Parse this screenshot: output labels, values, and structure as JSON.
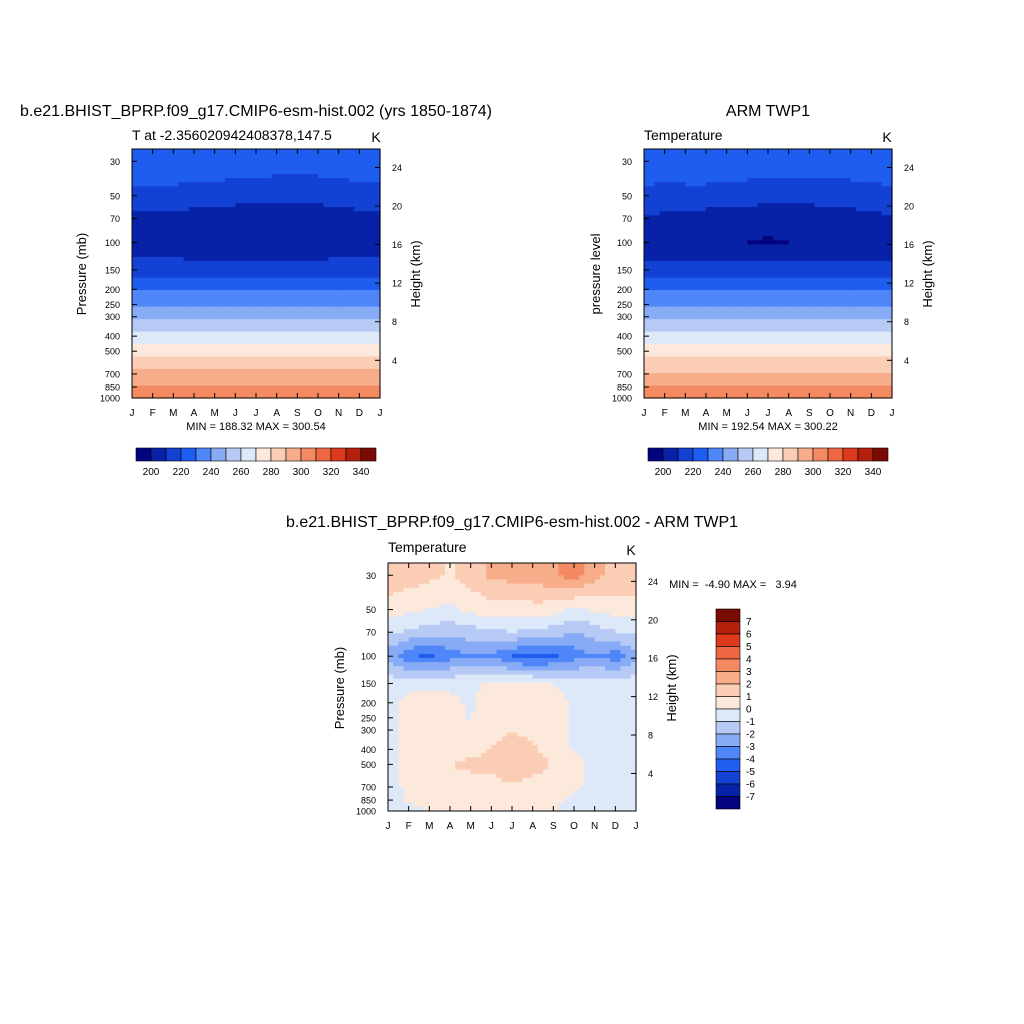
{
  "months": [
    "J",
    "F",
    "M",
    "A",
    "M",
    "J",
    "J",
    "A",
    "S",
    "O",
    "N",
    "D",
    "J"
  ],
  "pressure_levels": [
    30,
    50,
    70,
    100,
    150,
    200,
    250,
    300,
    400,
    500,
    700,
    850,
    1000
  ],
  "height_ticks_km": [
    24,
    20,
    16,
    12,
    8,
    4
  ],
  "panel_model": {
    "title": "b.e21.BHIST_BPRP.f09_g17.CMIP6-esm-hist.002 (yrs 1850-1874)",
    "subtitle_left": "T at -2.356020942408378,147.5",
    "units": "K",
    "ylabel": "Pressure (mb)",
    "y2label": "Height (km)",
    "minmax": "MIN = 188.32 MAX = 300.54"
  },
  "panel_obs": {
    "title": "ARM TWP1",
    "subtitle_left": "Temperature",
    "units": "K",
    "ylabel": "pressure level",
    "y2label": "Height (km)",
    "minmax": "MIN = 192.54 MAX = 300.22"
  },
  "panel_diff": {
    "title": "b.e21.BHIST_BPRP.f09_g17.CMIP6-esm-hist.002 - ARM TWP1",
    "subtitle_left": "Temperature",
    "units": "K",
    "ylabel": "Pressure (mb)",
    "y2label": "Height (km)",
    "minmax": "MIN =  -4.90 MAX =   3.94"
  },
  "colorbar_abs": {
    "labels": [
      "200",
      "220",
      "240",
      "260",
      "280",
      "300",
      "320",
      "340"
    ],
    "colors": [
      "#03037f",
      "#0722a6",
      "#1241d4",
      "#1e5df0",
      "#4f86f8",
      "#88abf6",
      "#b7caf5",
      "#dde8f9",
      "#fde9dc",
      "#fbcdb5",
      "#f8ad8a",
      "#f48a62",
      "#ee6644",
      "#dd3a1d",
      "#b3200c",
      "#7a0d03"
    ]
  },
  "colorbar_diff": {
    "labels": [
      "7",
      "6",
      "5",
      "4",
      "3",
      "2",
      "1",
      "0",
      "-1",
      "-2",
      "-3",
      "-4",
      "-5",
      "-6",
      "-7"
    ],
    "colors": [
      "#7a0d03",
      "#b3200c",
      "#dd3a1d",
      "#ee6644",
      "#f48a62",
      "#f8ad8a",
      "#fbcdb5",
      "#fde9dc",
      "#dde8f9",
      "#b7caf5",
      "#88abf6",
      "#4f86f8",
      "#1e5df0",
      "#1241d4",
      "#0722a6",
      "#03037f"
    ]
  },
  "chart_data": [
    {
      "type": "heatmap",
      "title": "b.e21.BHIST_BPRP.f09_g17.CMIP6-esm-hist.002 (yrs 1850-1874)",
      "variable": "T",
      "units": "K",
      "x": [
        "J",
        "F",
        "M",
        "A",
        "M",
        "J",
        "J",
        "A",
        "S",
        "O",
        "N",
        "D",
        "J"
      ],
      "y_pressure_mb": [
        30,
        50,
        70,
        100,
        150,
        200,
        250,
        300,
        400,
        500,
        700,
        850,
        1000
      ],
      "values": [
        [
          218,
          219,
          219,
          218,
          217,
          216,
          216,
          215,
          215,
          215,
          216,
          217,
          218
        ],
        [
          206,
          206,
          206,
          205,
          205,
          204,
          203,
          203,
          203,
          203,
          204,
          205,
          206
        ],
        [
          198,
          198,
          197,
          196,
          195,
          194,
          193,
          193,
          194,
          195,
          196,
          197,
          198
        ],
        [
          194,
          194,
          193,
          192,
          191,
          190,
          190,
          190,
          191,
          192,
          193,
          193,
          194
        ],
        [
          205,
          205,
          205,
          205,
          205,
          205,
          205,
          205,
          205,
          205,
          205,
          205,
          205
        ],
        [
          219,
          219,
          219,
          219,
          219,
          219,
          219,
          219,
          219,
          219,
          219,
          219,
          219
        ],
        [
          229,
          229,
          229,
          229,
          229,
          229,
          229,
          229,
          229,
          229,
          229,
          229,
          229
        ],
        [
          238,
          238,
          238,
          238,
          238,
          238,
          238,
          238,
          238,
          238,
          238,
          238,
          238
        ],
        [
          253,
          253,
          253,
          253,
          253,
          253,
          253,
          253,
          253,
          253,
          253,
          253,
          253
        ],
        [
          267,
          267,
          267,
          267,
          267,
          267,
          267,
          267,
          267,
          267,
          267,
          267,
          267
        ],
        [
          283,
          283,
          283,
          283,
          283,
          283,
          283,
          283,
          283,
          283,
          283,
          283,
          283
        ],
        [
          292,
          292,
          292,
          292,
          292,
          292,
          292,
          292,
          292,
          292,
          292,
          292,
          292
        ],
        [
          300,
          300,
          300,
          300,
          300,
          300,
          300,
          300,
          300,
          300,
          300,
          300,
          300
        ]
      ],
      "min": 188.32,
      "max": 300.54,
      "ylabel": "Pressure (mb)",
      "y2label": "Height (km)"
    },
    {
      "type": "heatmap",
      "title": "ARM TWP1",
      "variable": "Temperature",
      "units": "K",
      "x": [
        "J",
        "F",
        "M",
        "A",
        "M",
        "J",
        "J",
        "A",
        "S",
        "O",
        "N",
        "D",
        "J"
      ],
      "y_pressure_mb": [
        30,
        50,
        70,
        100,
        150,
        200,
        250,
        300,
        400,
        500,
        700,
        850,
        1000
      ],
      "values": [
        [
          217,
          217,
          218,
          218,
          217,
          216,
          216,
          216,
          216,
          215,
          216,
          217,
          217
        ],
        [
          207,
          206,
          206,
          206,
          205,
          205,
          204,
          204,
          204,
          204,
          205,
          206,
          207
        ],
        [
          199,
          198,
          197,
          196,
          195,
          194,
          193,
          193,
          194,
          195,
          196,
          197,
          199
        ],
        [
          194,
          194,
          193,
          192,
          191,
          190,
          189,
          190,
          191,
          192,
          193,
          193,
          194
        ],
        [
          204,
          204,
          204,
          204,
          204,
          204,
          204,
          204,
          204,
          204,
          204,
          204,
          204
        ],
        [
          219,
          219,
          219,
          219,
          219,
          219,
          219,
          219,
          219,
          219,
          219,
          219,
          219
        ],
        [
          229,
          229,
          229,
          229,
          229,
          229,
          229,
          229,
          229,
          229,
          229,
          229,
          229
        ],
        [
          238,
          238,
          238,
          238,
          238,
          238,
          238,
          238,
          238,
          238,
          238,
          238,
          238
        ],
        [
          253,
          253,
          253,
          253,
          253,
          253,
          253,
          253,
          253,
          253,
          253,
          253,
          253
        ],
        [
          266,
          266,
          266,
          266,
          266,
          266,
          266,
          266,
          266,
          266,
          266,
          266,
          266
        ],
        [
          282,
          282,
          282,
          282,
          282,
          282,
          282,
          282,
          282,
          282,
          282,
          282,
          282
        ],
        [
          291,
          291,
          291,
          291,
          291,
          291,
          291,
          291,
          291,
          291,
          291,
          291,
          291
        ],
        [
          299,
          299,
          299,
          299,
          299,
          299,
          299,
          299,
          299,
          299,
          299,
          299,
          299
        ]
      ],
      "min": 192.54,
      "max": 300.22,
      "ylabel": "pressure level",
      "y2label": "Height (km)"
    },
    {
      "type": "heatmap",
      "title": "b.e21.BHIST_BPRP.f09_g17.CMIP6-esm-hist.002 - ARM TWP1",
      "variable": "Temperature",
      "units": "K",
      "x": [
        "J",
        "F",
        "M",
        "A",
        "M",
        "J",
        "J",
        "A",
        "S",
        "O",
        "N",
        "D",
        "J"
      ],
      "y_pressure_mb": [
        30,
        50,
        70,
        100,
        150,
        200,
        250,
        300,
        400,
        500,
        700,
        850,
        1000
      ],
      "values": [
        [
          1.8,
          1.5,
          1.2,
          0.9,
          1.4,
          2.2,
          2.4,
          2.5,
          2.8,
          3.5,
          2.3,
          1.8,
          1.8
        ],
        [
          0.5,
          0.2,
          0.0,
          -0.2,
          0.3,
          0.6,
          0.4,
          0.6,
          0.5,
          -0.3,
          0.2,
          0.4,
          0.5
        ],
        [
          -0.8,
          -1.2,
          -1.5,
          -1.8,
          -1.5,
          -1.2,
          -1.0,
          -1.2,
          -1.5,
          -2.0,
          -1.6,
          -1.0,
          -0.8
        ],
        [
          -2.5,
          -3.8,
          -4.2,
          -3.5,
          -3.0,
          -3.2,
          -4.0,
          -4.6,
          -4.2,
          -3.5,
          -3.0,
          -3.6,
          -2.5
        ],
        [
          -0.4,
          -0.3,
          -0.2,
          -0.2,
          -0.2,
          0.1,
          0.2,
          0.2,
          0.0,
          -0.3,
          -0.4,
          -0.4,
          -0.4
        ],
        [
          -0.3,
          0.3,
          0.4,
          0.2,
          -0.1,
          0.6,
          0.8,
          0.7,
          0.4,
          -0.2,
          -0.4,
          -0.5,
          -0.3
        ],
        [
          -0.4,
          0.4,
          0.5,
          0.3,
          -0.1,
          0.8,
          0.9,
          0.8,
          0.4,
          -0.2,
          -0.5,
          -0.5,
          -0.4
        ],
        [
          -0.3,
          0.3,
          0.4,
          0.3,
          0.1,
          0.8,
          1.0,
          0.8,
          0.4,
          -0.2,
          -0.4,
          -0.4,
          -0.3
        ],
        [
          -0.3,
          0.2,
          0.4,
          0.5,
          0.7,
          1.0,
          1.3,
          1.1,
          0.6,
          -0.1,
          -0.3,
          -0.3,
          -0.3
        ],
        [
          -0.2,
          0.2,
          0.8,
          1.0,
          1.2,
          1.4,
          2.1,
          1.5,
          0.9,
          0.3,
          -0.2,
          -0.2,
          -0.2
        ],
        [
          -0.3,
          0.2,
          0.5,
          0.6,
          0.6,
          0.5,
          0.7,
          0.5,
          0.4,
          0.2,
          -0.3,
          -0.4,
          -0.3
        ],
        [
          -0.5,
          0.1,
          0.2,
          0.3,
          0.3,
          0.2,
          0.3,
          0.2,
          0.2,
          -0.2,
          -0.5,
          -0.5,
          -0.5
        ],
        [
          -0.6,
          -0.2,
          0.0,
          0.0,
          0.2,
          0.3,
          0.4,
          0.3,
          0.1,
          -0.4,
          -0.6,
          -0.6,
          -0.6
        ]
      ],
      "min": -4.9,
      "max": 3.94,
      "ylabel": "Pressure (mb)",
      "y2label": "Height (km)"
    }
  ]
}
